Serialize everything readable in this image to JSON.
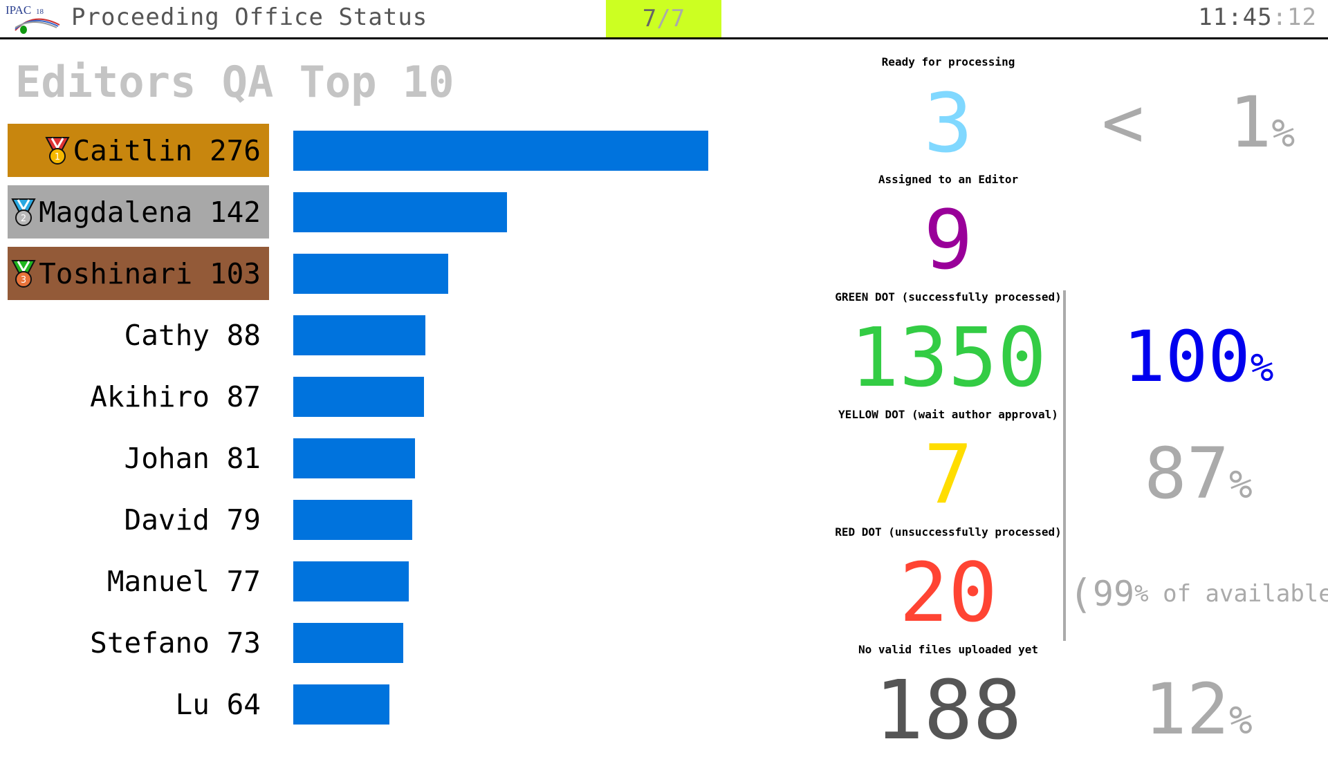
{
  "header": {
    "logo_text": "IPAC18",
    "title": "Proceeding Office Status",
    "page_current": "7",
    "page_separator": "/",
    "page_total": "7",
    "clock_hm": "11:45",
    "clock_sep": ":",
    "clock_sec": "12"
  },
  "editors": {
    "title": "Editors QA Top 10",
    "bar_color": "#0073dd",
    "max_value": 276,
    "rows": [
      {
        "name": "Caitlin",
        "count": 276,
        "medal": "gold-medal",
        "bg": "#c8860e"
      },
      {
        "name": "Magdalena",
        "count": 142,
        "medal": "silver-medal",
        "bg": "#a8a8a8"
      },
      {
        "name": "Toshinari",
        "count": 103,
        "medal": "bronze-medal",
        "bg": "#935a38"
      },
      {
        "name": "Cathy",
        "count": 88
      },
      {
        "name": "Akihiro",
        "count": 87
      },
      {
        "name": "Johan",
        "count": 81
      },
      {
        "name": "David",
        "count": 79
      },
      {
        "name": "Manuel",
        "count": 77
      },
      {
        "name": "Stefano",
        "count": 73
      },
      {
        "name": "Lu",
        "count": 64
      }
    ]
  },
  "stats": {
    "ready": {
      "label": "Ready for processing",
      "value": "3",
      "color": "#80d8ff",
      "pct_prefix": "<",
      "pct": "1",
      "pct_sign": "%"
    },
    "assigned": {
      "label": "Assigned to an Editor",
      "value": "9",
      "color": "#990099"
    },
    "green": {
      "label": "GREEN DOT (successfully processed)",
      "value": "1350",
      "color": "#33cc44",
      "pct": "100",
      "pct_sign": "%",
      "pct_color": "#0000ee"
    },
    "yellow": {
      "label": "YELLOW DOT (wait author approval)",
      "value": "7",
      "color": "#ffdd00",
      "pct": "87",
      "pct_sign": "%"
    },
    "red": {
      "label": "RED DOT (unsuccessfully processed)",
      "value": "20",
      "color": "#ff4433",
      "avail_open": "(",
      "avail_pct": "99",
      "avail_sign": "%",
      "avail_text": "of available",
      "avail_close": ")"
    },
    "novalid": {
      "label": "No valid files uploaded yet",
      "value": "188",
      "color": "#555555",
      "pct": "12",
      "pct_sign": "%"
    }
  }
}
